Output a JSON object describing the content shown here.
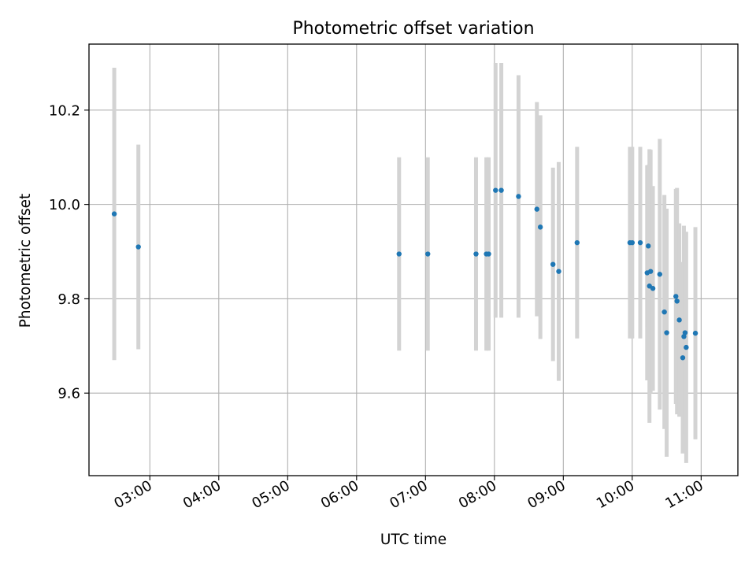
{
  "chart_data": {
    "type": "scatter",
    "title": "Photometric offset variation",
    "xlabel": "UTC time",
    "ylabel": "Photometric offset",
    "x_unit": "UTC time (HH:MM)",
    "xlim": [
      "02:07",
      "11:32"
    ],
    "ylim": [
      9.425,
      10.34
    ],
    "x_ticks": [
      "03:00",
      "04:00",
      "05:00",
      "06:00",
      "07:00",
      "08:00",
      "09:00",
      "10:00",
      "11:00"
    ],
    "y_ticks": [
      "9.6",
      "9.8",
      "10.0",
      "10.2"
    ],
    "grid": true,
    "legend": "none",
    "colors": {
      "points": "#1f77b4",
      "errorbars": "#d3d3d3",
      "grid": "#b0b0b0"
    },
    "points": [
      {
        "x": "02:29",
        "y": 9.98,
        "err": 0.31
      },
      {
        "x": "02:50",
        "y": 9.91,
        "err": 0.217
      },
      {
        "x": "06:37",
        "y": 9.895,
        "err": 0.205
      },
      {
        "x": "07:02",
        "y": 9.895,
        "err": 0.205
      },
      {
        "x": "07:44",
        "y": 9.895,
        "err": 0.205
      },
      {
        "x": "07:53",
        "y": 9.895,
        "err": 0.205
      },
      {
        "x": "07:55",
        "y": 9.895,
        "err": 0.205
      },
      {
        "x": "08:01",
        "y": 10.03,
        "err": 0.27
      },
      {
        "x": "08:06",
        "y": 10.03,
        "err": 0.27
      },
      {
        "x": "08:21",
        "y": 10.017,
        "err": 0.257
      },
      {
        "x": "08:37",
        "y": 9.99,
        "err": 0.227
      },
      {
        "x": "08:40",
        "y": 9.952,
        "err": 0.237
      },
      {
        "x": "08:51",
        "y": 9.873,
        "err": 0.205
      },
      {
        "x": "08:56",
        "y": 9.858,
        "err": 0.232
      },
      {
        "x": "09:12",
        "y": 9.919,
        "err": 0.203
      },
      {
        "x": "09:58",
        "y": 9.919,
        "err": 0.203
      },
      {
        "x": "10:00",
        "y": 9.919,
        "err": 0.203
      },
      {
        "x": "10:07",
        "y": 9.919,
        "err": 0.203
      },
      {
        "x": "10:13",
        "y": 9.855,
        "err": 0.228
      },
      {
        "x": "10:14",
        "y": 9.912,
        "err": 0.172
      },
      {
        "x": "10:15",
        "y": 9.827,
        "err": 0.29
      },
      {
        "x": "10:16",
        "y": 9.858,
        "err": 0.258
      },
      {
        "x": "10:18",
        "y": 9.822,
        "err": 0.217
      },
      {
        "x": "10:24",
        "y": 9.852,
        "err": 0.287
      },
      {
        "x": "10:28",
        "y": 9.772,
        "err": 0.248
      },
      {
        "x": "10:30",
        "y": 9.728,
        "err": 0.263
      },
      {
        "x": "10:38",
        "y": 9.805,
        "err": 0.228
      },
      {
        "x": "10:39",
        "y": 9.795,
        "err": 0.24
      },
      {
        "x": "10:41",
        "y": 9.755,
        "err": 0.205
      },
      {
        "x": "10:44",
        "y": 9.675,
        "err": 0.203
      },
      {
        "x": "10:45",
        "y": 9.72,
        "err": 0.235
      },
      {
        "x": "10:46",
        "y": 9.728,
        "err": 0.214
      },
      {
        "x": "10:47",
        "y": 9.697,
        "err": 0.245
      },
      {
        "x": "10:55",
        "y": 9.727,
        "err": 0.225
      }
    ]
  }
}
